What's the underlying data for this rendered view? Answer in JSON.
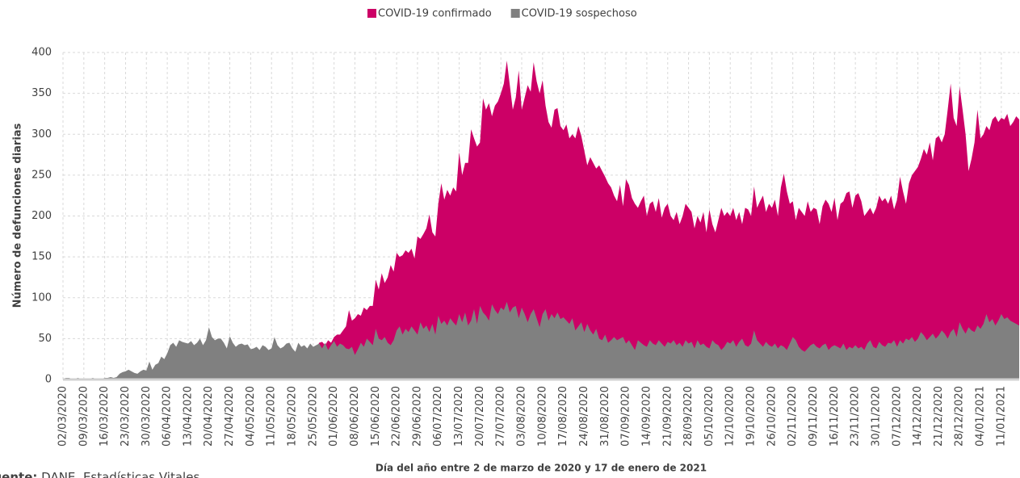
{
  "chart_data": {
    "type": "area",
    "y_label": "Número de defunciones diarias",
    "x_label": "Día del año entre 2 de marzo de 2020 y 17 de enero de 2021",
    "source_prefix": "Fuente:",
    "source": "DANE, Estadísticas Vitales",
    "ylim": [
      0,
      400
    ],
    "yticks": [
      0,
      50,
      100,
      150,
      200,
      250,
      300,
      350,
      400
    ],
    "grid": true,
    "categories": [
      "02/03/2020",
      null,
      null,
      null,
      null,
      null,
      null,
      "09/03/2020",
      null,
      null,
      null,
      null,
      null,
      null,
      "16/03/2020",
      null,
      null,
      null,
      null,
      null,
      null,
      "23/03/2020",
      null,
      null,
      null,
      null,
      null,
      null,
      "30/03/2020",
      null,
      null,
      null,
      null,
      null,
      null,
      "06/04/2020",
      null,
      null,
      null,
      null,
      null,
      null,
      "13/04/2020",
      null,
      null,
      null,
      null,
      null,
      null,
      "20/04/2020",
      null,
      null,
      null,
      null,
      null,
      null,
      "27/04/2020",
      null,
      null,
      null,
      null,
      null,
      null,
      "04/05/2020",
      null,
      null,
      null,
      null,
      null,
      null,
      "11/05/2020",
      null,
      null,
      null,
      null,
      null,
      null,
      "18/05/2020",
      null,
      null,
      null,
      null,
      null,
      null,
      "25/05/2020",
      null,
      null,
      null,
      null,
      null,
      null,
      "01/06/2020",
      null,
      null,
      null,
      null,
      null,
      null,
      "08/06/2020",
      null,
      null,
      null,
      null,
      null,
      null,
      "15/06/2020",
      null,
      null,
      null,
      null,
      null,
      null,
      "22/06/2020",
      null,
      null,
      null,
      null,
      null,
      null,
      "29/06/2020",
      null,
      null,
      null,
      null,
      null,
      null,
      "06/07/2020",
      null,
      null,
      null,
      null,
      null,
      null,
      "13/07/2020",
      null,
      null,
      null,
      null,
      null,
      null,
      "20/07/2020",
      null,
      null,
      null,
      null,
      null,
      null,
      "27/07/2020",
      null,
      null,
      null,
      null,
      null,
      null,
      "03/08/2020",
      null,
      null,
      null,
      null,
      null,
      null,
      "10/08/2020",
      null,
      null,
      null,
      null,
      null,
      null,
      "17/08/2020",
      null,
      null,
      null,
      null,
      null,
      null,
      "24/08/2020",
      null,
      null,
      null,
      null,
      null,
      null,
      "31/08/2020",
      null,
      null,
      null,
      null,
      null,
      null,
      "07/09/2020",
      null,
      null,
      null,
      null,
      null,
      null,
      "14/09/2020",
      null,
      null,
      null,
      null,
      null,
      null,
      "21/09/2020",
      null,
      null,
      null,
      null,
      null,
      null,
      "28/09/2020",
      null,
      null,
      null,
      null,
      null,
      null,
      "05/10/2020",
      null,
      null,
      null,
      null,
      null,
      null,
      "12/10/2020",
      null,
      null,
      null,
      null,
      null,
      null,
      "19/10/2020",
      null,
      null,
      null,
      null,
      null,
      null,
      "26/10/2020",
      null,
      null,
      null,
      null,
      null,
      null,
      "02/11/2020",
      null,
      null,
      null,
      null,
      null,
      null,
      "09/11/2020",
      null,
      null,
      null,
      null,
      null,
      null,
      "16/11/2020",
      null,
      null,
      null,
      null,
      null,
      null,
      "23/11/2020",
      null,
      null,
      null,
      null,
      null,
      null,
      "30/11/2020",
      null,
      null,
      null,
      null,
      null,
      null,
      "07/12/2020",
      null,
      null,
      null,
      null,
      null,
      null,
      "14/12/2020",
      null,
      null,
      null,
      null,
      null,
      null,
      "21/12/2020",
      null,
      null,
      null,
      null,
      null,
      null,
      "28/12/2020",
      null,
      null,
      null,
      null,
      null,
      null,
      "04/01/2021",
      null,
      null,
      null,
      null,
      null,
      null,
      "11/01/2021",
      null,
      null,
      null,
      null,
      null,
      null
    ],
    "series": [
      {
        "name": "COVID-19 confirmado",
        "color": "#cc0066",
        "values": [
          0,
          0,
          0,
          0,
          0,
          0,
          0,
          0,
          0,
          0,
          0,
          0,
          0,
          0,
          0,
          0,
          0,
          0,
          1,
          1,
          2,
          1,
          2,
          3,
          2,
          4,
          5,
          4,
          6,
          4,
          6,
          8,
          7,
          5,
          8,
          10,
          8,
          9,
          7,
          8,
          10,
          9,
          8,
          7,
          9,
          10,
          8,
          6,
          7,
          8,
          9,
          7,
          6,
          8,
          10,
          9,
          10,
          9,
          12,
          11,
          10,
          13,
          11,
          12,
          10,
          14,
          13,
          12,
          15,
          14,
          15,
          18,
          16,
          14,
          17,
          19,
          18,
          20,
          22,
          25,
          24,
          28,
          30,
          32,
          35,
          38,
          45,
          46,
          42,
          48,
          45,
          52,
          55,
          55,
          60,
          65,
          85,
          72,
          75,
          80,
          78,
          88,
          85,
          90,
          90,
          122,
          110,
          130,
          118,
          125,
          140,
          132,
          155,
          150,
          152,
          158,
          155,
          160,
          148,
          175,
          172,
          178,
          185,
          202,
          180,
          175,
          215,
          240,
          220,
          232,
          225,
          235,
          230,
          278,
          250,
          265,
          265,
          306,
          295,
          285,
          290,
          344,
          330,
          338,
          322,
          335,
          340,
          350,
          362,
          390,
          360,
          330,
          345,
          378,
          330,
          345,
          360,
          352,
          388,
          365,
          350,
          366,
          335,
          315,
          308,
          330,
          332,
          310,
          305,
          312,
          295,
          300,
          295,
          310,
          298,
          280,
          262,
          272,
          265,
          258,
          262,
          255,
          248,
          240,
          235,
          225,
          218,
          238,
          212,
          245,
          238,
          222,
          215,
          210,
          218,
          225,
          200,
          215,
          218,
          205,
          222,
          198,
          210,
          215,
          200,
          195,
          205,
          190,
          200,
          215,
          210,
          205,
          185,
          200,
          192,
          205,
          180,
          208,
          190,
          180,
          195,
          210,
          200,
          205,
          200,
          210,
          195,
          205,
          190,
          210,
          208,
          200,
          236,
          210,
          218,
          225,
          205,
          215,
          210,
          220,
          200,
          235,
          252,
          230,
          215,
          218,
          195,
          210,
          205,
          200,
          218,
          205,
          210,
          208,
          190,
          212,
          220,
          215,
          205,
          222,
          195,
          215,
          218,
          228,
          230,
          210,
          225,
          228,
          218,
          200,
          205,
          210,
          202,
          210,
          225,
          218,
          222,
          215,
          225,
          208,
          220,
          248,
          230,
          215,
          240,
          250,
          255,
          260,
          270,
          282,
          275,
          290,
          268,
          295,
          298,
          290,
          300,
          330,
          362,
          320,
          310,
          358,
          330,
          300,
          255,
          270,
          290,
          330,
          295,
          300,
          310,
          305,
          318,
          322,
          315,
          320,
          318,
          325,
          310,
          315,
          322,
          318
        ]
      },
      {
        "name": "COVID-19 sospechoso",
        "color": "#808080",
        "values": [
          1,
          2,
          2,
          1,
          1,
          2,
          1,
          1,
          1,
          1,
          2,
          1,
          1,
          1,
          2,
          2,
          3,
          2,
          3,
          7,
          9,
          10,
          12,
          10,
          8,
          7,
          10,
          12,
          11,
          22,
          12,
          18,
          20,
          28,
          25,
          32,
          42,
          45,
          40,
          48,
          46,
          45,
          44,
          47,
          42,
          45,
          50,
          42,
          48,
          64,
          52,
          48,
          50,
          50,
          45,
          38,
          53,
          45,
          40,
          43,
          44,
          42,
          43,
          37,
          38,
          40,
          36,
          42,
          40,
          36,
          38,
          52,
          42,
          38,
          40,
          44,
          45,
          38,
          34,
          45,
          40,
          42,
          38,
          44,
          40,
          42,
          44,
          38,
          45,
          36,
          42,
          47,
          40,
          44,
          42,
          38,
          37,
          40,
          30,
          37,
          45,
          40,
          50,
          46,
          42,
          62,
          50,
          48,
          52,
          45,
          42,
          48,
          60,
          65,
          55,
          62,
          58,
          65,
          60,
          55,
          70,
          62,
          66,
          58,
          68,
          55,
          78,
          68,
          72,
          66,
          75,
          70,
          66,
          80,
          70,
          82,
          66,
          72,
          86,
          68,
          90,
          82,
          78,
          72,
          92,
          85,
          80,
          88,
          85,
          95,
          82,
          88,
          90,
          75,
          88,
          80,
          70,
          80,
          86,
          75,
          64,
          80,
          86,
          72,
          80,
          75,
          82,
          74,
          76,
          72,
          68,
          75,
          60,
          65,
          70,
          58,
          68,
          60,
          55,
          62,
          50,
          48,
          55,
          45,
          48,
          52,
          48,
          50,
          52,
          44,
          48,
          42,
          36,
          48,
          45,
          42,
          40,
          48,
          44,
          42,
          48,
          44,
          40,
          46,
          44,
          48,
          42,
          45,
          40,
          48,
          44,
          46,
          38,
          48,
          42,
          44,
          40,
          38,
          48,
          44,
          42,
          36,
          40,
          46,
          44,
          48,
          40,
          46,
          50,
          42,
          40,
          44,
          60,
          48,
          44,
          40,
          46,
          42,
          40,
          44,
          38,
          42,
          40,
          36,
          44,
          52,
          48,
          40,
          36,
          34,
          38,
          42,
          44,
          40,
          38,
          42,
          44,
          36,
          40,
          42,
          40,
          38,
          44,
          36,
          40,
          38,
          42,
          38,
          40,
          36,
          44,
          48,
          40,
          38,
          46,
          42,
          40,
          45,
          44,
          48,
          40,
          48,
          44,
          50,
          48,
          52,
          46,
          50,
          58,
          54,
          48,
          52,
          56,
          50,
          54,
          60,
          56,
          50,
          58,
          62,
          52,
          70,
          62,
          56,
          64,
          60,
          58,
          66,
          62,
          68,
          80,
          70,
          74,
          66,
          72,
          80,
          74,
          76,
          72,
          70,
          68,
          66
        ]
      }
    ]
  }
}
